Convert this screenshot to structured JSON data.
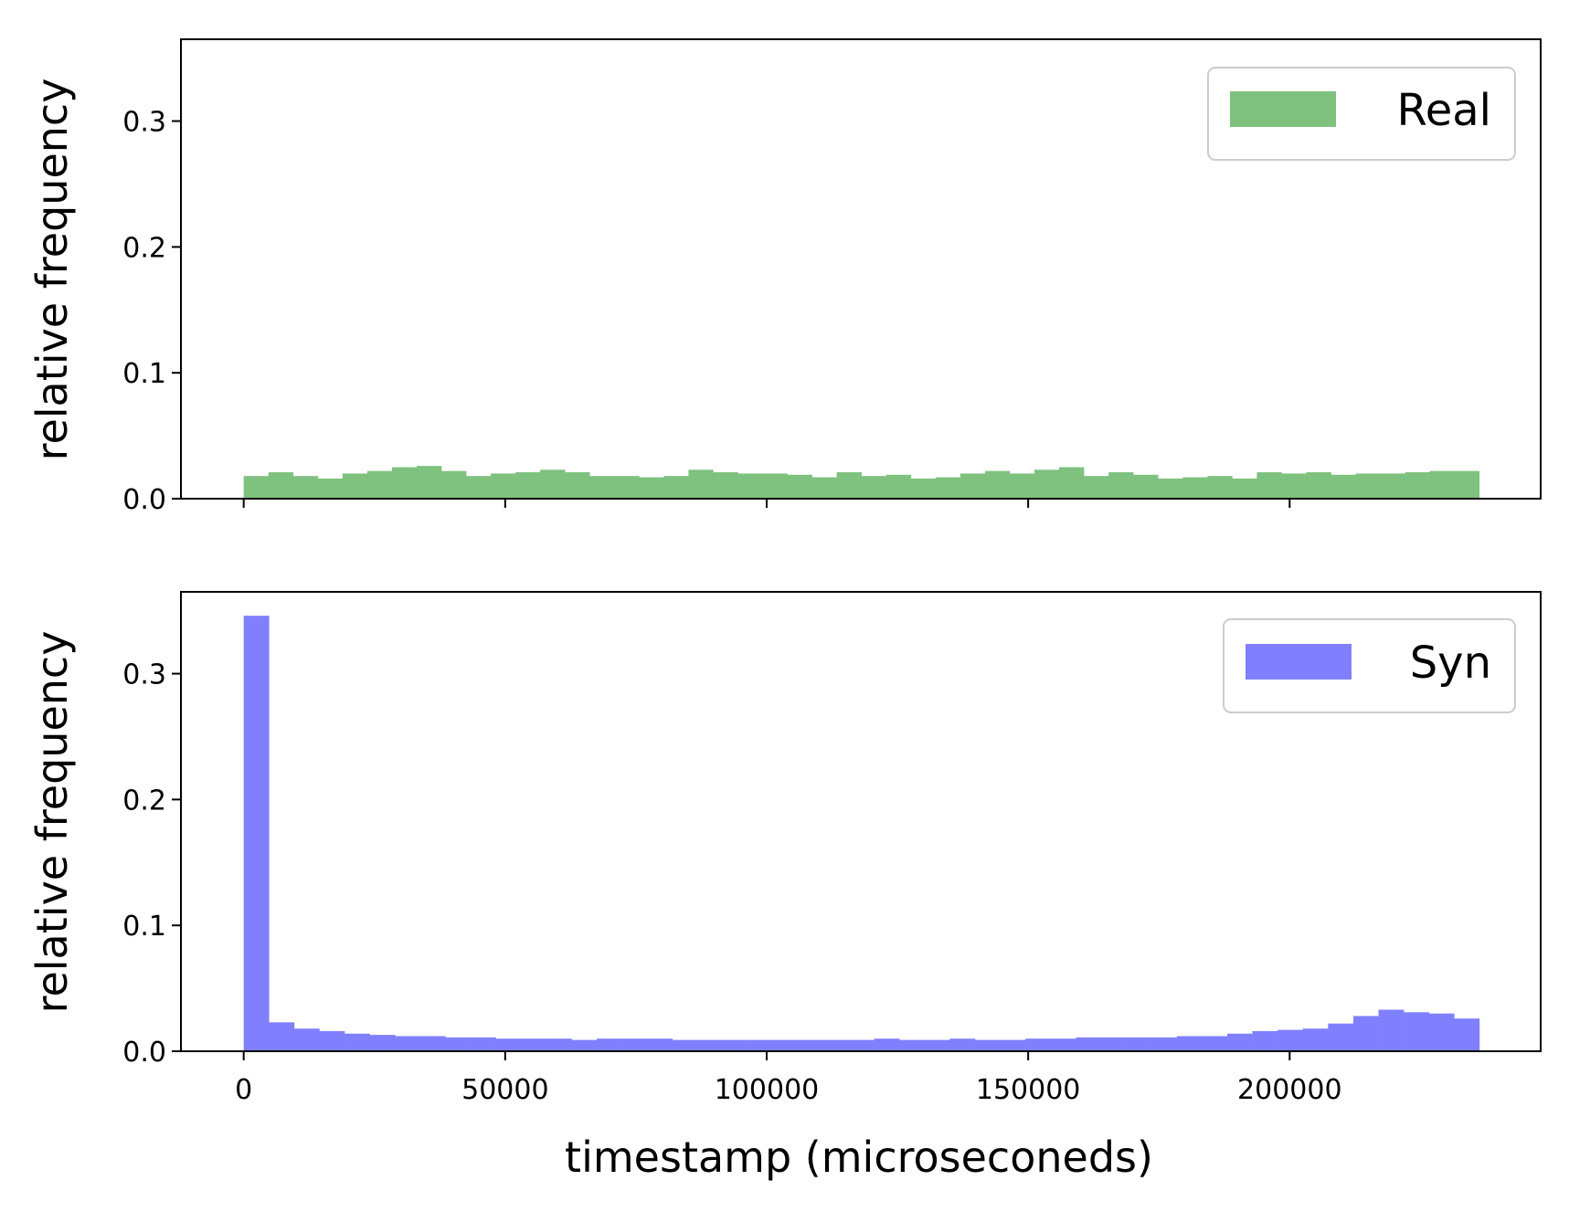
{
  "chart_data": [
    {
      "type": "bar",
      "panel": "top",
      "series": [
        {
          "name": "Real",
          "color": "#7fc17f",
          "values": [
            0.018,
            0.021,
            0.018,
            0.016,
            0.02,
            0.022,
            0.025,
            0.026,
            0.022,
            0.018,
            0.02,
            0.021,
            0.023,
            0.021,
            0.018,
            0.018,
            0.017,
            0.018,
            0.023,
            0.021,
            0.02,
            0.02,
            0.019,
            0.017,
            0.021,
            0.018,
            0.019,
            0.016,
            0.017,
            0.02,
            0.022,
            0.02,
            0.023,
            0.025,
            0.018,
            0.021,
            0.019,
            0.016,
            0.017,
            0.018,
            0.016,
            0.021,
            0.02,
            0.021,
            0.019,
            0.02,
            0.02,
            0.021,
            0.022,
            0.022
          ]
        }
      ],
      "bin_start": 0,
      "bin_width": 4725,
      "xlim": [
        -12000,
        248000
      ],
      "ylim": [
        0,
        0.365
      ],
      "xticks": [
        0,
        50000,
        100000,
        150000,
        200000
      ],
      "yticks": [
        "0.0",
        "0.1",
        "0.2",
        "0.3"
      ],
      "ylabel": "relative frequency",
      "xlabel": "",
      "show_xtick_labels": false,
      "legend": {
        "label": "Real",
        "position": "top-right"
      },
      "grid": false
    },
    {
      "type": "bar",
      "panel": "bottom",
      "series": [
        {
          "name": "Syn",
          "color": "#8080ff",
          "values": [
            0.346,
            0.023,
            0.018,
            0.016,
            0.014,
            0.013,
            0.012,
            0.012,
            0.011,
            0.011,
            0.01,
            0.01,
            0.01,
            0.009,
            0.01,
            0.01,
            0.01,
            0.009,
            0.009,
            0.009,
            0.009,
            0.009,
            0.009,
            0.009,
            0.009,
            0.01,
            0.009,
            0.009,
            0.01,
            0.009,
            0.009,
            0.01,
            0.01,
            0.011,
            0.011,
            0.011,
            0.011,
            0.012,
            0.012,
            0.014,
            0.016,
            0.017,
            0.018,
            0.022,
            0.028,
            0.033,
            0.031,
            0.03,
            0.026
          ]
        }
      ],
      "bin_start": 0,
      "bin_width": 4822,
      "xlim": [
        -12000,
        248000
      ],
      "ylim": [
        0,
        0.365
      ],
      "xticks": [
        0,
        50000,
        100000,
        150000,
        200000
      ],
      "xtick_labels": [
        "0",
        "50000",
        "100000",
        "150000",
        "200000"
      ],
      "yticks": [
        "0.0",
        "0.1",
        "0.2",
        "0.3"
      ],
      "ylabel": "relative frequency",
      "xlabel": "timestamp (microseconeds)",
      "legend": {
        "label": "Syn",
        "position": "top-right"
      },
      "grid": false
    }
  ]
}
